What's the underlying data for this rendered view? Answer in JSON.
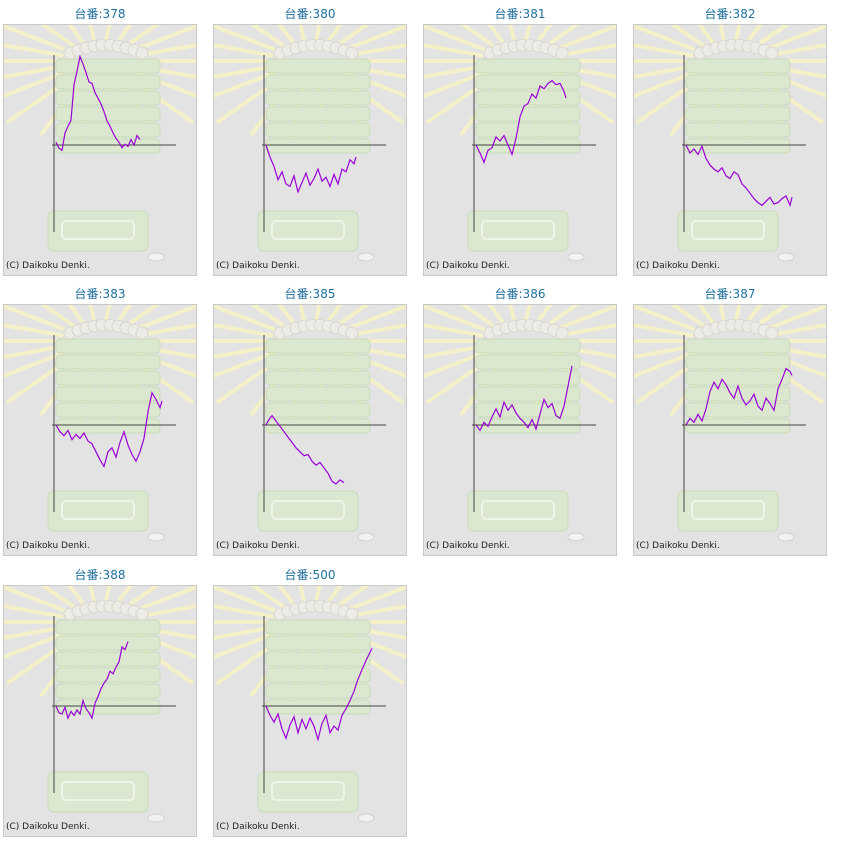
{
  "colors": {
    "line": "#9a00d8",
    "axis": "#444444",
    "title": "#1f6f9e",
    "panel_bg": "#e3e3e3"
  },
  "chart_data": [
    {
      "type": "line",
      "title": "台番:378",
      "copyright": "(C) Daikoku Denki.",
      "points": [
        [
          0,
          4
        ],
        [
          3,
          -5
        ],
        [
          6,
          -8
        ],
        [
          9,
          18
        ],
        [
          12,
          28
        ],
        [
          15,
          37
        ],
        [
          18,
          90
        ],
        [
          21,
          110
        ],
        [
          24,
          132
        ],
        [
          27,
          121
        ],
        [
          30,
          108
        ],
        [
          33,
          94
        ],
        [
          36,
          92
        ],
        [
          39,
          78
        ],
        [
          42,
          70
        ],
        [
          45,
          61
        ],
        [
          48,
          50
        ],
        [
          51,
          36
        ],
        [
          54,
          28
        ],
        [
          57,
          18
        ],
        [
          60,
          10
        ],
        [
          63,
          4
        ],
        [
          66,
          -4
        ],
        [
          69,
          1
        ],
        [
          72,
          -2
        ],
        [
          75,
          8
        ],
        [
          78,
          0
        ],
        [
          81,
          14
        ],
        [
          84,
          8
        ]
      ]
    },
    {
      "type": "line",
      "title": "台番:380",
      "copyright": "(C) Daikoku Denki.",
      "points": [
        [
          0,
          0
        ],
        [
          4,
          -18
        ],
        [
          8,
          -32
        ],
        [
          12,
          -52
        ],
        [
          16,
          -40
        ],
        [
          20,
          -58
        ],
        [
          24,
          -62
        ],
        [
          28,
          -46
        ],
        [
          32,
          -70
        ],
        [
          36,
          -56
        ],
        [
          40,
          -42
        ],
        [
          44,
          -60
        ],
        [
          48,
          -50
        ],
        [
          52,
          -36
        ],
        [
          56,
          -54
        ],
        [
          60,
          -48
        ],
        [
          64,
          -62
        ],
        [
          68,
          -44
        ],
        [
          72,
          -58
        ],
        [
          76,
          -36
        ],
        [
          80,
          -40
        ],
        [
          84,
          -22
        ],
        [
          88,
          -28
        ],
        [
          90,
          -18
        ]
      ]
    },
    {
      "type": "line",
      "title": "台番:381",
      "copyright": "(C) Daikoku Denki.",
      "points": [
        [
          0,
          0
        ],
        [
          4,
          -12
        ],
        [
          8,
          -26
        ],
        [
          12,
          -8
        ],
        [
          16,
          -4
        ],
        [
          20,
          12
        ],
        [
          24,
          6
        ],
        [
          28,
          14
        ],
        [
          32,
          0
        ],
        [
          36,
          -14
        ],
        [
          40,
          10
        ],
        [
          44,
          42
        ],
        [
          48,
          58
        ],
        [
          52,
          62
        ],
        [
          56,
          76
        ],
        [
          60,
          70
        ],
        [
          64,
          88
        ],
        [
          68,
          84
        ],
        [
          72,
          92
        ],
        [
          76,
          96
        ],
        [
          80,
          90
        ],
        [
          84,
          92
        ],
        [
          88,
          80
        ],
        [
          90,
          70
        ]
      ]
    },
    {
      "type": "line",
      "title": "台番:382",
      "copyright": "(C) Daikoku Denki.",
      "points": [
        [
          0,
          0
        ],
        [
          4,
          -12
        ],
        [
          8,
          -6
        ],
        [
          12,
          -14
        ],
        [
          16,
          -2
        ],
        [
          20,
          -20
        ],
        [
          24,
          -30
        ],
        [
          28,
          -36
        ],
        [
          32,
          -40
        ],
        [
          36,
          -34
        ],
        [
          40,
          -46
        ],
        [
          44,
          -50
        ],
        [
          48,
          -40
        ],
        [
          52,
          -44
        ],
        [
          56,
          -58
        ],
        [
          60,
          -64
        ],
        [
          64,
          -72
        ],
        [
          68,
          -80
        ],
        [
          72,
          -86
        ],
        [
          76,
          -90
        ],
        [
          80,
          -84
        ],
        [
          84,
          -78
        ],
        [
          88,
          -88
        ],
        [
          92,
          -86
        ],
        [
          96,
          -80
        ],
        [
          100,
          -76
        ],
        [
          104,
          -90
        ],
        [
          106,
          -78
        ]
      ]
    },
    {
      "type": "line",
      "title": "台番:383",
      "copyright": "(C) Daikoku Denki.",
      "points": [
        [
          0,
          0
        ],
        [
          4,
          -10
        ],
        [
          8,
          -16
        ],
        [
          12,
          -8
        ],
        [
          16,
          -22
        ],
        [
          20,
          -14
        ],
        [
          24,
          -20
        ],
        [
          28,
          -12
        ],
        [
          32,
          -24
        ],
        [
          36,
          -28
        ],
        [
          40,
          -40
        ],
        [
          44,
          -52
        ],
        [
          48,
          -62
        ],
        [
          52,
          -40
        ],
        [
          56,
          -34
        ],
        [
          60,
          -48
        ],
        [
          64,
          -26
        ],
        [
          68,
          -10
        ],
        [
          72,
          -30
        ],
        [
          76,
          -44
        ],
        [
          80,
          -54
        ],
        [
          84,
          -40
        ],
        [
          88,
          -20
        ],
        [
          92,
          20
        ],
        [
          96,
          48
        ],
        [
          100,
          38
        ],
        [
          104,
          26
        ],
        [
          106,
          36
        ]
      ]
    },
    {
      "type": "line",
      "title": "台番:385",
      "copyright": "(C) Daikoku Denki.",
      "points": [
        [
          0,
          0
        ],
        [
          3,
          8
        ],
        [
          6,
          14
        ],
        [
          10,
          6
        ],
        [
          14,
          -2
        ],
        [
          18,
          -10
        ],
        [
          22,
          -18
        ],
        [
          26,
          -26
        ],
        [
          30,
          -34
        ],
        [
          34,
          -40
        ],
        [
          38,
          -46
        ],
        [
          42,
          -44
        ],
        [
          46,
          -54
        ],
        [
          50,
          -60
        ],
        [
          54,
          -56
        ],
        [
          58,
          -64
        ],
        [
          62,
          -72
        ],
        [
          66,
          -84
        ],
        [
          70,
          -88
        ],
        [
          74,
          -82
        ],
        [
          78,
          -86
        ]
      ]
    },
    {
      "type": "line",
      "title": "台番:386",
      "copyright": "(C) Daikoku Denki.",
      "points": [
        [
          0,
          0
        ],
        [
          4,
          -8
        ],
        [
          8,
          4
        ],
        [
          12,
          -2
        ],
        [
          16,
          12
        ],
        [
          20,
          24
        ],
        [
          24,
          12
        ],
        [
          28,
          34
        ],
        [
          32,
          22
        ],
        [
          36,
          30
        ],
        [
          40,
          18
        ],
        [
          44,
          10
        ],
        [
          48,
          4
        ],
        [
          52,
          -4
        ],
        [
          56,
          8
        ],
        [
          60,
          -6
        ],
        [
          64,
          16
        ],
        [
          68,
          38
        ],
        [
          72,
          26
        ],
        [
          76,
          32
        ],
        [
          80,
          14
        ],
        [
          84,
          10
        ],
        [
          88,
          28
        ],
        [
          92,
          58
        ],
        [
          96,
          88
        ]
      ]
    },
    {
      "type": "line",
      "title": "台番:387",
      "copyright": "(C) Daikoku Denki.",
      "points": [
        [
          0,
          0
        ],
        [
          4,
          10
        ],
        [
          8,
          4
        ],
        [
          12,
          16
        ],
        [
          16,
          6
        ],
        [
          20,
          24
        ],
        [
          24,
          50
        ],
        [
          28,
          64
        ],
        [
          32,
          54
        ],
        [
          36,
          68
        ],
        [
          40,
          60
        ],
        [
          44,
          48
        ],
        [
          48,
          40
        ],
        [
          52,
          58
        ],
        [
          56,
          40
        ],
        [
          60,
          30
        ],
        [
          64,
          36
        ],
        [
          68,
          46
        ],
        [
          72,
          28
        ],
        [
          76,
          22
        ],
        [
          80,
          40
        ],
        [
          84,
          32
        ],
        [
          88,
          22
        ],
        [
          92,
          54
        ],
        [
          96,
          68
        ],
        [
          100,
          84
        ],
        [
          104,
          80
        ],
        [
          106,
          74
        ]
      ]
    },
    {
      "type": "line",
      "title": "台番:388",
      "copyright": "(C) Daikoku Denki.",
      "points": [
        [
          0,
          0
        ],
        [
          3,
          -10
        ],
        [
          6,
          -12
        ],
        [
          9,
          -2
        ],
        [
          12,
          -18
        ],
        [
          15,
          -8
        ],
        [
          18,
          -14
        ],
        [
          21,
          -6
        ],
        [
          24,
          -12
        ],
        [
          27,
          8
        ],
        [
          30,
          -4
        ],
        [
          33,
          -10
        ],
        [
          36,
          -18
        ],
        [
          39,
          4
        ],
        [
          42,
          14
        ],
        [
          45,
          26
        ],
        [
          48,
          34
        ],
        [
          51,
          40
        ],
        [
          54,
          52
        ],
        [
          57,
          48
        ],
        [
          60,
          58
        ],
        [
          63,
          66
        ],
        [
          66,
          88
        ],
        [
          69,
          84
        ],
        [
          72,
          96
        ]
      ]
    },
    {
      "type": "line",
      "title": "台番:500",
      "copyright": "(C) Daikoku Denki.",
      "points": [
        [
          0,
          0
        ],
        [
          4,
          -14
        ],
        [
          8,
          -24
        ],
        [
          12,
          -12
        ],
        [
          16,
          -34
        ],
        [
          20,
          -48
        ],
        [
          24,
          -28
        ],
        [
          28,
          -16
        ],
        [
          32,
          -40
        ],
        [
          36,
          -20
        ],
        [
          40,
          -34
        ],
        [
          44,
          -18
        ],
        [
          48,
          -30
        ],
        [
          52,
          -50
        ],
        [
          56,
          -26
        ],
        [
          60,
          -14
        ],
        [
          64,
          -40
        ],
        [
          68,
          -30
        ],
        [
          72,
          -36
        ],
        [
          76,
          -14
        ],
        [
          80,
          -4
        ],
        [
          84,
          8
        ],
        [
          88,
          22
        ],
        [
          92,
          40
        ],
        [
          96,
          54
        ],
        [
          100,
          68
        ],
        [
          104,
          80
        ],
        [
          106,
          86
        ]
      ]
    }
  ]
}
